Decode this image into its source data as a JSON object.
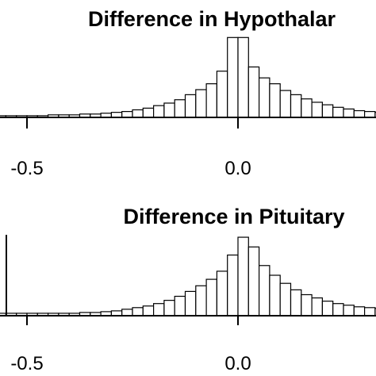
{
  "chart_data": [
    {
      "type": "bar",
      "title": "Difference in Hypothalar",
      "xlabel": "",
      "ylabel": "",
      "xlim": [
        -0.62,
        0.68
      ],
      "ylim": [
        0,
        100
      ],
      "grid": false,
      "x_ticks": [
        -0.5,
        0.0
      ],
      "x_tick_labels": [
        "-0.5",
        "0.0"
      ],
      "bin_width": 0.025,
      "bins": [
        {
          "x": -0.6125,
          "value": 2
        },
        {
          "x": -0.5875,
          "value": 2
        },
        {
          "x": -0.5625,
          "value": 2
        },
        {
          "x": -0.5375,
          "value": 2
        },
        {
          "x": -0.5125,
          "value": 2
        },
        {
          "x": -0.4875,
          "value": 2
        },
        {
          "x": -0.4625,
          "value": 2
        },
        {
          "x": -0.4375,
          "value": 3
        },
        {
          "x": -0.4125,
          "value": 3
        },
        {
          "x": -0.3875,
          "value": 3
        },
        {
          "x": -0.3625,
          "value": 4
        },
        {
          "x": -0.3375,
          "value": 4
        },
        {
          "x": -0.3125,
          "value": 5
        },
        {
          "x": -0.2875,
          "value": 6
        },
        {
          "x": -0.2625,
          "value": 7
        },
        {
          "x": -0.2375,
          "value": 9
        },
        {
          "x": -0.2125,
          "value": 11
        },
        {
          "x": -0.1875,
          "value": 14
        },
        {
          "x": -0.1625,
          "value": 17
        },
        {
          "x": -0.1375,
          "value": 21
        },
        {
          "x": -0.1125,
          "value": 27
        },
        {
          "x": -0.0875,
          "value": 33
        },
        {
          "x": -0.0625,
          "value": 40
        },
        {
          "x": -0.0375,
          "value": 55
        },
        {
          "x": -0.0125,
          "value": 95
        },
        {
          "x": 0.0125,
          "value": 95
        },
        {
          "x": 0.0375,
          "value": 60
        },
        {
          "x": 0.0625,
          "value": 47
        },
        {
          "x": 0.0875,
          "value": 40
        },
        {
          "x": 0.1125,
          "value": 32
        },
        {
          "x": 0.1375,
          "value": 27
        },
        {
          "x": 0.1625,
          "value": 22
        },
        {
          "x": 0.1875,
          "value": 18
        },
        {
          "x": 0.2125,
          "value": 15
        },
        {
          "x": 0.2375,
          "value": 12
        },
        {
          "x": 0.2625,
          "value": 10
        },
        {
          "x": 0.2875,
          "value": 8
        },
        {
          "x": 0.3125,
          "value": 7
        },
        {
          "x": 0.3375,
          "value": 6
        },
        {
          "x": 0.3625,
          "value": 5
        },
        {
          "x": 0.3875,
          "value": 4
        },
        {
          "x": 0.4125,
          "value": 4
        },
        {
          "x": 0.4375,
          "value": 3
        },
        {
          "x": 0.4625,
          "value": 3
        },
        {
          "x": 0.4875,
          "value": 3
        },
        {
          "x": 0.5125,
          "value": 2
        },
        {
          "x": 0.5375,
          "value": 2
        },
        {
          "x": 0.5625,
          "value": 2
        },
        {
          "x": 0.5875,
          "value": 2
        },
        {
          "x": 0.6125,
          "value": 2
        },
        {
          "x": 0.6375,
          "value": 2
        },
        {
          "x": 0.6625,
          "value": 2
        }
      ]
    },
    {
      "type": "bar",
      "title": "Difference in Pituitary",
      "xlabel": "",
      "ylabel": "",
      "xlim": [
        -0.62,
        0.68
      ],
      "ylim": [
        0,
        100
      ],
      "grid": false,
      "x_ticks": [
        -0.5,
        0.0
      ],
      "x_tick_labels": [
        "-0.5",
        "0.0"
      ],
      "bin_width": 0.025,
      "bins": [
        {
          "x": -0.6125,
          "value": 3
        },
        {
          "x": -0.5875,
          "value": 3
        },
        {
          "x": -0.5625,
          "value": 3
        },
        {
          "x": -0.5375,
          "value": 3
        },
        {
          "x": -0.5125,
          "value": 3
        },
        {
          "x": -0.4875,
          "value": 3
        },
        {
          "x": -0.4625,
          "value": 3
        },
        {
          "x": -0.4375,
          "value": 3
        },
        {
          "x": -0.4125,
          "value": 3
        },
        {
          "x": -0.3875,
          "value": 3
        },
        {
          "x": -0.3625,
          "value": 4
        },
        {
          "x": -0.3375,
          "value": 4
        },
        {
          "x": -0.3125,
          "value": 5
        },
        {
          "x": -0.2875,
          "value": 6
        },
        {
          "x": -0.2625,
          "value": 8
        },
        {
          "x": -0.2375,
          "value": 10
        },
        {
          "x": -0.2125,
          "value": 12
        },
        {
          "x": -0.1875,
          "value": 15
        },
        {
          "x": -0.1625,
          "value": 19
        },
        {
          "x": -0.1375,
          "value": 24
        },
        {
          "x": -0.1125,
          "value": 30
        },
        {
          "x": -0.0875,
          "value": 37
        },
        {
          "x": -0.0625,
          "value": 45
        },
        {
          "x": -0.0375,
          "value": 55
        },
        {
          "x": -0.0125,
          "value": 75
        },
        {
          "x": 0.0125,
          "value": 97
        },
        {
          "x": 0.0375,
          "value": 85
        },
        {
          "x": 0.0625,
          "value": 62
        },
        {
          "x": 0.0875,
          "value": 50
        },
        {
          "x": 0.1125,
          "value": 40
        },
        {
          "x": 0.1375,
          "value": 32
        },
        {
          "x": 0.1625,
          "value": 26
        },
        {
          "x": 0.1875,
          "value": 22
        },
        {
          "x": 0.2125,
          "value": 18
        },
        {
          "x": 0.2375,
          "value": 15
        },
        {
          "x": 0.2625,
          "value": 13
        },
        {
          "x": 0.2875,
          "value": 11
        },
        {
          "x": 0.3125,
          "value": 10
        },
        {
          "x": 0.3375,
          "value": 9
        },
        {
          "x": 0.3625,
          "value": 8
        },
        {
          "x": 0.3875,
          "value": 7
        },
        {
          "x": 0.4125,
          "value": 6
        },
        {
          "x": 0.4375,
          "value": 5
        },
        {
          "x": 0.4625,
          "value": 5
        },
        {
          "x": 0.4875,
          "value": 4
        },
        {
          "x": 0.5125,
          "value": 4
        },
        {
          "x": 0.5375,
          "value": 4
        },
        {
          "x": 0.5625,
          "value": 3
        },
        {
          "x": 0.5875,
          "value": 3
        },
        {
          "x": 0.6125,
          "value": 3
        },
        {
          "x": 0.6375,
          "value": 3
        },
        {
          "x": 0.6625,
          "value": 3
        }
      ]
    }
  ]
}
